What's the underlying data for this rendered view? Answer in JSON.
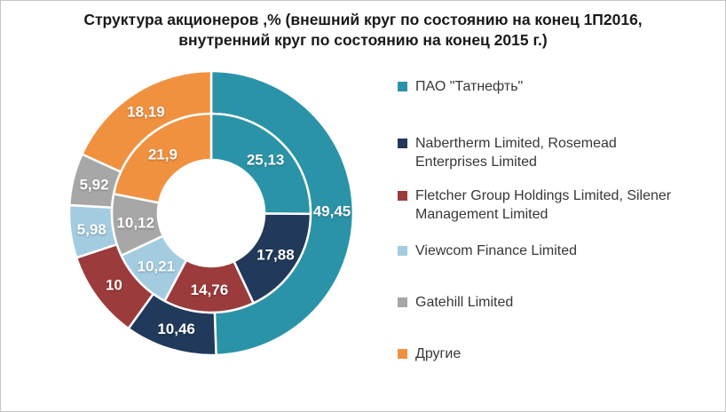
{
  "frame": {
    "background_color": "#ffffff",
    "border_color": "#c6c6c6"
  },
  "chart_data": {
    "type": "pie",
    "subtype": "double_ring_donut",
    "title": "Структура акционеров ,% (внешний круг по состоянию на конец 1П2016, внутренний круг по состоянию на конец 2015 г.)",
    "legend_position": "right",
    "direction": "clockwise",
    "start_angle_deg": 0,
    "label_color": "#ffffff",
    "categories": [
      "ПАО \"Татнефть\"",
      "Nabertherm Limited, Rosemead Enterprises Limited",
      "Fletcher Group Holdings Limited, Silener Management Limited",
      "Viewcom Finance Limited",
      "Gatehill Limited",
      "Другие"
    ],
    "colors": [
      "#2b93a8",
      "#21395a",
      "#9c3b3c",
      "#a3cce1",
      "#a7a7a7",
      "#f0913f"
    ],
    "series": [
      {
        "name": "внешний круг — конец 1П2016",
        "ring": "outer",
        "values": [
          49.45,
          10.46,
          10,
          5.98,
          5.92,
          18.19
        ],
        "labels": [
          "49,45",
          "10,46",
          "10",
          "5,98",
          "5,92",
          "18,19"
        ]
      },
      {
        "name": "внутренний круг — конец 2015 г.",
        "ring": "inner",
        "values": [
          25.13,
          17.88,
          14.76,
          10.21,
          10.12,
          21.9
        ],
        "labels": [
          "25,13",
          "17,88",
          "14,76",
          "10,21",
          "10,12",
          "21,9"
        ]
      }
    ]
  }
}
